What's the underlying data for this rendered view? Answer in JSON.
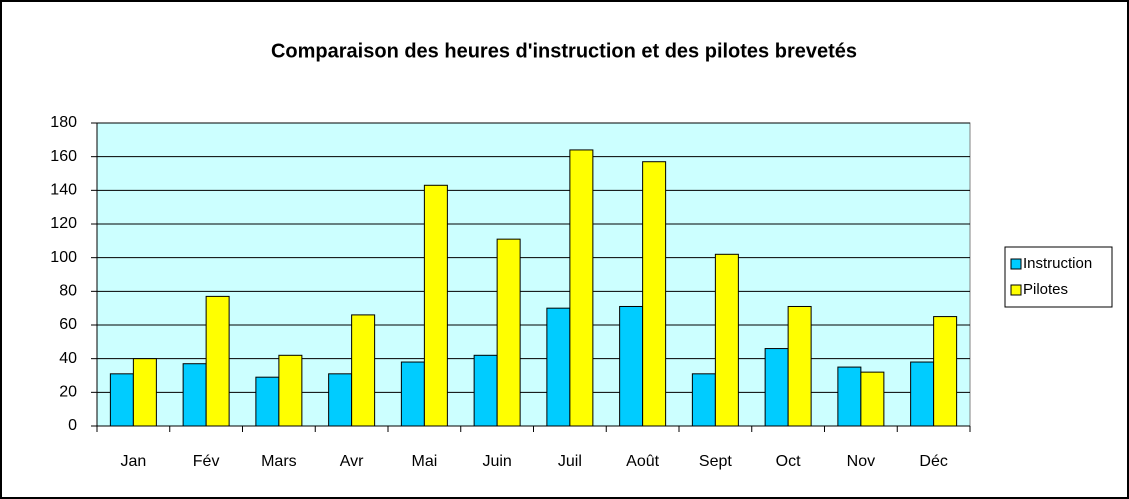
{
  "chart_data": {
    "type": "bar",
    "title": "Comparaison des heures d'instruction et des pilotes brevetés",
    "categories": [
      "Jan",
      "Fév",
      "Mars",
      "Avr",
      "Mai",
      "Juin",
      "Juil",
      "Août",
      "Sept",
      "Oct",
      "Nov",
      "Déc"
    ],
    "series": [
      {
        "name": "Instruction",
        "color": "#00ccff",
        "values": [
          31,
          37,
          29,
          31,
          38,
          42,
          70,
          71,
          31,
          46,
          35,
          38
        ]
      },
      {
        "name": "Pilotes",
        "color": "#ffff00",
        "values": [
          40,
          77,
          42,
          66,
          143,
          111,
          164,
          157,
          102,
          71,
          32,
          65
        ]
      }
    ],
    "ylim": [
      0,
      180
    ],
    "yticks": [
      0,
      20,
      40,
      60,
      80,
      100,
      120,
      140,
      160,
      180
    ],
    "grid": true,
    "legend": "right",
    "plot_background": "#ccffff"
  }
}
